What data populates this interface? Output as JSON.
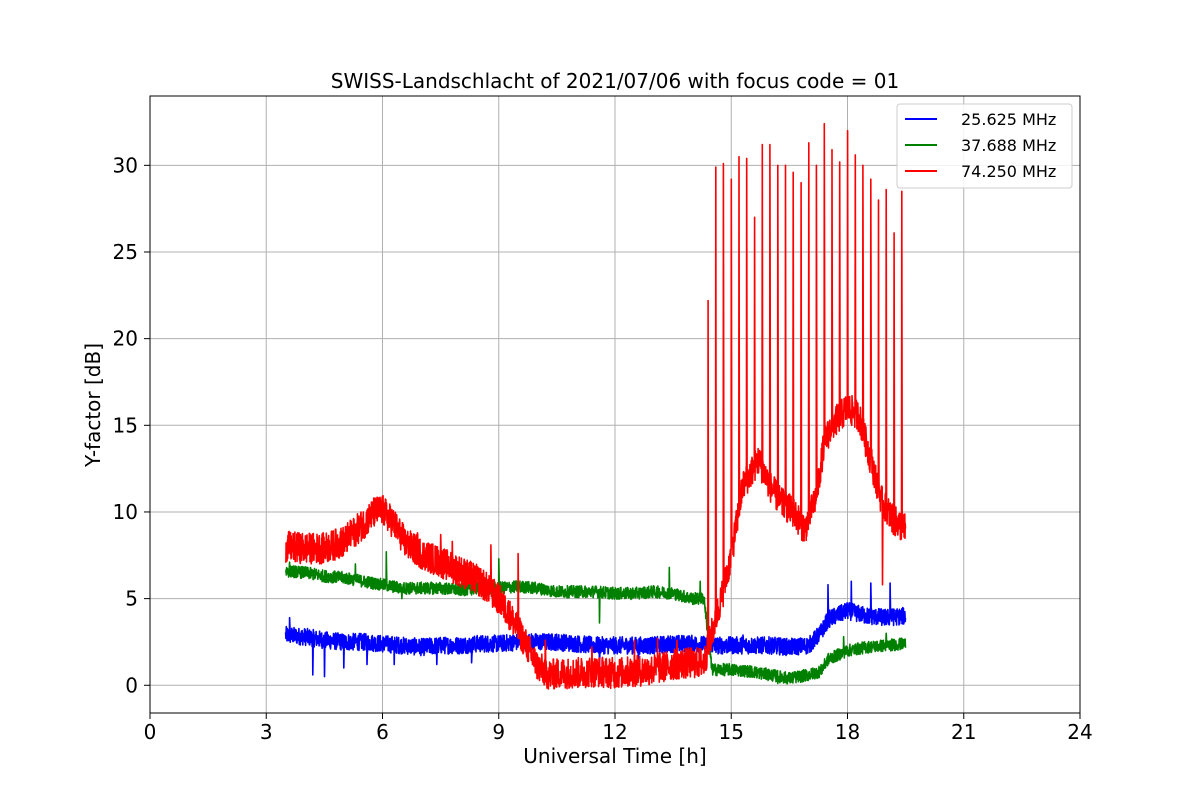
{
  "chart_data": {
    "type": "line",
    "title": "SWISS-Landschlacht of 2021/07/06 with focus code = 01",
    "xlabel": "Universal Time [h]",
    "ylabel": "Y-factor [dB]",
    "xlim": [
      0,
      24
    ],
    "ylim": [
      -1.6,
      34
    ],
    "xticks": [
      "0",
      "3",
      "6",
      "9",
      "12",
      "15",
      "18",
      "21",
      "24"
    ],
    "yticks": [
      "0",
      "5",
      "10",
      "15",
      "20",
      "25",
      "30"
    ],
    "grid": true,
    "legend_position": "top-right",
    "series": [
      {
        "name": "25.625 MHz",
        "color": "#0000ff",
        "x": [
          3.5,
          4.0,
          4.5,
          5.0,
          5.5,
          6.0,
          6.5,
          7.0,
          7.5,
          8.0,
          8.5,
          9.0,
          9.5,
          10.0,
          10.5,
          11.0,
          11.5,
          12.0,
          12.5,
          13.0,
          13.5,
          14.0,
          14.5,
          15.0,
          15.5,
          16.0,
          16.5,
          17.0,
          17.3,
          17.5,
          18.0,
          18.5,
          19.0,
          19.5
        ],
        "values": [
          2.9,
          2.8,
          2.6,
          2.5,
          2.5,
          2.4,
          2.3,
          2.2,
          2.3,
          2.3,
          2.4,
          2.4,
          2.5,
          2.5,
          2.5,
          2.4,
          2.3,
          2.3,
          2.3,
          2.3,
          2.4,
          2.4,
          2.3,
          2.3,
          2.3,
          2.3,
          2.2,
          2.3,
          3.0,
          3.8,
          4.3,
          4.0,
          3.9,
          4.0
        ],
        "noise": 0.5,
        "spikes": [
          [
            3.6,
            3.9
          ],
          [
            4.2,
            0.6
          ],
          [
            4.5,
            0.5
          ],
          [
            5.0,
            1.0
          ],
          [
            5.6,
            1.2
          ],
          [
            6.3,
            1.2
          ],
          [
            7.4,
            1.2
          ],
          [
            8.3,
            1.3
          ],
          [
            11.6,
            0.1
          ],
          [
            12.6,
            1.2
          ],
          [
            15.3,
            2.9
          ],
          [
            17.5,
            5.8
          ],
          [
            18.1,
            6.0
          ],
          [
            18.6,
            5.9
          ],
          [
            19.1,
            5.9
          ]
        ]
      },
      {
        "name": "37.688 MHz",
        "color": "#008000",
        "x": [
          3.5,
          4.0,
          4.5,
          5.0,
          5.5,
          6.0,
          6.5,
          7.0,
          7.5,
          8.0,
          8.5,
          9.0,
          9.5,
          10.0,
          10.5,
          11.0,
          11.5,
          12.0,
          12.5,
          13.0,
          13.5,
          14.0,
          14.3,
          14.5,
          15.0,
          15.5,
          16.0,
          16.5,
          17.0,
          17.3,
          17.5,
          18.0,
          18.5,
          19.0,
          19.5
        ],
        "values": [
          6.6,
          6.5,
          6.3,
          6.2,
          6.0,
          5.8,
          5.6,
          5.6,
          5.6,
          5.5,
          5.6,
          5.6,
          5.7,
          5.6,
          5.4,
          5.4,
          5.4,
          5.3,
          5.3,
          5.4,
          5.3,
          5.0,
          5.0,
          0.9,
          0.9,
          0.8,
          0.6,
          0.4,
          0.6,
          0.8,
          1.5,
          2.0,
          2.2,
          2.3,
          2.4
        ],
        "noise": 0.35,
        "spikes": [
          [
            3.6,
            7.1
          ],
          [
            5.3,
            7.0
          ],
          [
            6.1,
            7.7
          ],
          [
            6.5,
            5.0
          ],
          [
            8.1,
            6.6
          ],
          [
            9.0,
            7.3
          ],
          [
            11.6,
            3.6
          ],
          [
            13.4,
            6.8
          ],
          [
            14.2,
            6.0
          ],
          [
            16.2,
            0.1
          ],
          [
            17.9,
            2.8
          ],
          [
            19.0,
            3.0
          ]
        ]
      },
      {
        "name": "74.250 MHz",
        "color": "#ff0000",
        "x": [
          3.5,
          4.0,
          4.5,
          5.0,
          5.5,
          5.8,
          6.0,
          6.3,
          6.6,
          7.0,
          7.5,
          8.0,
          8.5,
          9.0,
          9.3,
          9.6,
          10.0,
          10.3,
          10.6,
          11.0,
          11.5,
          12.0,
          12.5,
          13.0,
          13.5,
          14.0,
          14.3,
          14.5,
          14.8,
          15.0,
          15.3,
          15.7,
          16.0,
          16.3,
          16.6,
          16.9,
          17.2,
          17.4,
          17.6,
          18.0,
          18.3,
          18.6,
          18.9,
          19.2,
          19.5
        ],
        "values": [
          8.0,
          7.9,
          7.9,
          8.3,
          9.3,
          10.0,
          10.1,
          9.3,
          8.2,
          7.6,
          7.1,
          6.6,
          6.0,
          5.0,
          4.0,
          2.8,
          1.1,
          0.6,
          0.7,
          0.7,
          0.8,
          0.7,
          0.8,
          0.9,
          1.2,
          1.3,
          1.3,
          3.0,
          5.5,
          7.5,
          11.5,
          13.0,
          11.5,
          10.5,
          10.0,
          9.0,
          11.0,
          14.0,
          15.0,
          16.0,
          15.5,
          13.0,
          10.5,
          9.5,
          9.0
        ],
        "noise": 0.9,
        "spikes": [
          [
            4.5,
            8.3
          ],
          [
            5.9,
            10.8
          ],
          [
            6.9,
            8.8
          ],
          [
            7.5,
            8.7
          ],
          [
            7.8,
            8.3
          ],
          [
            8.8,
            8.1
          ],
          [
            9.5,
            7.6
          ],
          [
            10.2,
            2.6
          ],
          [
            11.4,
            2.2
          ],
          [
            12.5,
            2.6
          ],
          [
            13.1,
            2.7
          ],
          [
            13.6,
            2.6
          ],
          [
            14.4,
            22.2
          ],
          [
            14.6,
            29.9
          ],
          [
            14.8,
            30.1
          ],
          [
            15.0,
            29.2
          ],
          [
            15.2,
            30.5
          ],
          [
            15.4,
            30.4
          ],
          [
            15.6,
            27.0
          ],
          [
            15.8,
            31.2
          ],
          [
            16.0,
            31.2
          ],
          [
            16.2,
            30.0
          ],
          [
            16.4,
            30.0
          ],
          [
            16.6,
            29.6
          ],
          [
            16.8,
            29.0
          ],
          [
            17.0,
            31.3
          ],
          [
            17.2,
            30.0
          ],
          [
            17.4,
            32.4
          ],
          [
            17.6,
            30.9
          ],
          [
            17.8,
            30.2
          ],
          [
            18.0,
            32.0
          ],
          [
            18.2,
            30.6
          ],
          [
            18.4,
            30.0
          ],
          [
            18.6,
            29.2
          ],
          [
            18.8,
            28.0
          ],
          [
            19.0,
            28.6
          ],
          [
            19.2,
            26.1
          ],
          [
            19.4,
            28.5
          ],
          [
            18.9,
            5.8
          ]
        ]
      }
    ]
  }
}
